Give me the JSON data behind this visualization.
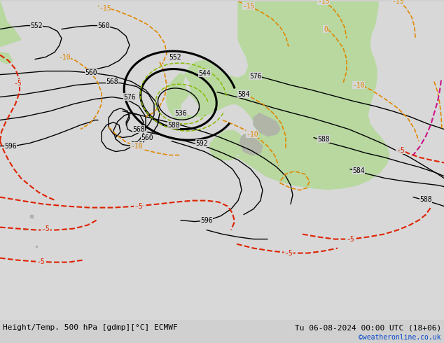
{
  "title_bottom_left": "Height/Temp. 500 hPa [gdmp][°C] ECMWF",
  "title_bottom_right": "Tu 06-08-2024 00:00 UTC (18+06)",
  "credit": "©weatheronline.co.uk",
  "bg_color": "#d0d0d0",
  "ocean_color": "#d8d8d8",
  "land_color": "#b8d8a0",
  "land_gray_color": "#b0b0b0",
  "z500_color": "#000000",
  "orange_color": "#e08800",
  "red_color": "#dd2200",
  "magenta_color": "#cc00aa",
  "green_color": "#88bb00",
  "font_size_labels": 7,
  "font_size_bottom": 8,
  "font_size_credit": 7
}
